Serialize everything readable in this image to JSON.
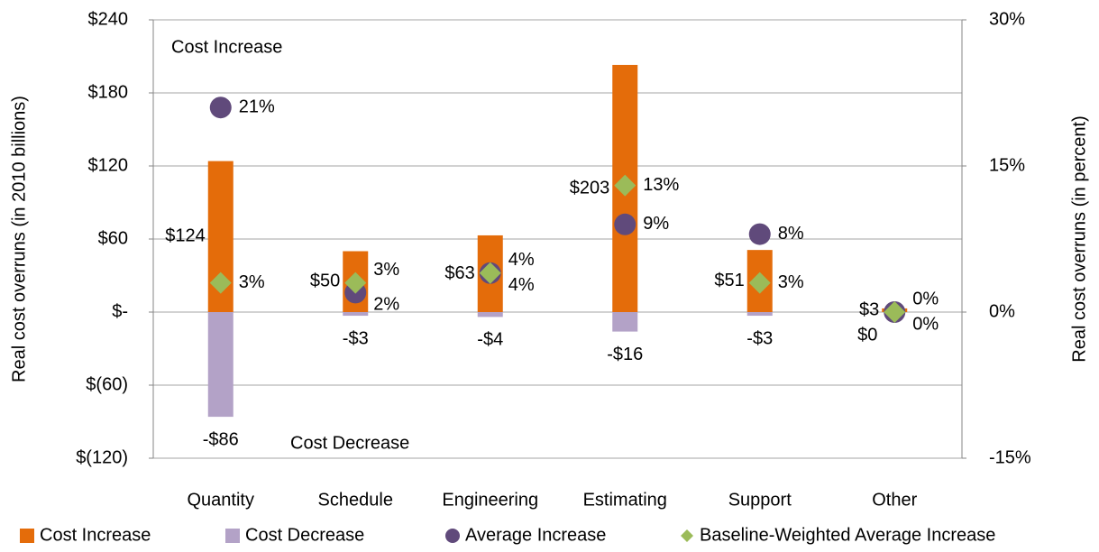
{
  "chart_data": {
    "type": "bar",
    "categories": [
      "Quantity",
      "Schedule",
      "Engineering",
      "Estimating",
      "Support",
      "Other"
    ],
    "series": [
      {
        "name": "Cost Increase",
        "color": "#e46c0a",
        "values": [
          124,
          50,
          63,
          203,
          51,
          3
        ],
        "value_labels": [
          "$124",
          "$50",
          "$63",
          "$203",
          "$51",
          "$3"
        ]
      },
      {
        "name": "Cost Decrease",
        "color": "#b3a2c7",
        "values": [
          -86,
          -3,
          -4,
          -16,
          -3,
          0
        ],
        "value_labels": [
          "-$86",
          "-$3",
          "-$4",
          "-$16",
          "-$3",
          "$0"
        ]
      },
      {
        "name": "Average Increase",
        "color": "#604a7b",
        "axis": "y2",
        "marker": "circle",
        "values": [
          21,
          2,
          4,
          9,
          8,
          0
        ],
        "value_labels": [
          "21%",
          "2%",
          "4%",
          "9%",
          "8%",
          "0%"
        ]
      },
      {
        "name": "Baseline-Weighted Average Increase",
        "color": "#9bbb59",
        "axis": "y2",
        "marker": "diamond",
        "values": [
          3,
          3,
          4,
          13,
          3,
          0
        ],
        "value_labels": [
          "3%",
          "3%",
          "4%",
          "13%",
          "3%",
          "0%"
        ]
      }
    ],
    "ylabel": "Real cost overruns (in 2010 billions)",
    "y2label": "Real cost overruns (in percent)",
    "ylim": [
      -120,
      240
    ],
    "yticks": [
      {
        "value": -120,
        "label": "$(120)"
      },
      {
        "value": -60,
        "label": "$(60)"
      },
      {
        "value": 0,
        "label": "$-"
      },
      {
        "value": 60,
        "label": "$60"
      },
      {
        "value": 120,
        "label": "$120"
      },
      {
        "value": 180,
        "label": "$180"
      },
      {
        "value": 240,
        "label": "$240"
      }
    ],
    "y2lim": [
      -15,
      30
    ],
    "y2ticks": [
      {
        "value": -15,
        "label": "-15%"
      },
      {
        "value": 0,
        "label": "0%"
      },
      {
        "value": 15,
        "label": "15%"
      },
      {
        "value": 30,
        "label": "30%"
      }
    ],
    "annotations": [
      "Cost Increase",
      "Cost Decrease"
    ],
    "grid": true,
    "legend": "bottom"
  }
}
